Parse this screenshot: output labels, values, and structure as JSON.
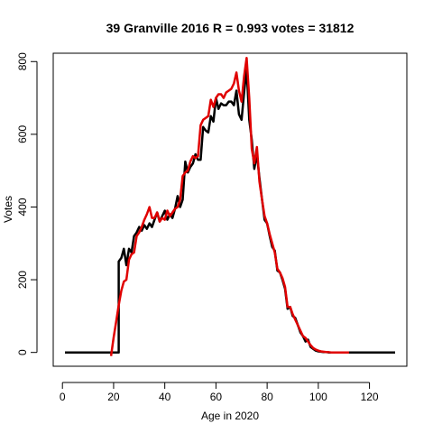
{
  "chart_data": {
    "type": "line",
    "title": "39 Granville 2016 R = 0.993 votes = 31812",
    "xlabel": "Age in 2020",
    "ylabel": "Votes",
    "xlim": [
      -3.6,
      134.6
    ],
    "ylim": [
      -38,
      823
    ],
    "x_ticks": [
      "0",
      "20",
      "40",
      "60",
      "80",
      "100",
      "120"
    ],
    "y_ticks": [
      "0",
      "200",
      "400",
      "600",
      "800"
    ],
    "grid": false,
    "legend": "none",
    "series": [
      {
        "color": "#000000",
        "x": [
          1,
          22,
          22,
          23,
          24,
          25,
          26,
          27,
          28,
          29,
          30,
          31,
          32,
          33,
          34,
          35,
          36,
          37,
          38,
          39,
          40,
          41,
          42,
          43,
          44,
          45,
          46,
          47,
          48,
          49,
          50,
          51,
          52,
          53,
          54,
          55,
          56,
          57,
          58,
          59,
          60,
          61,
          62,
          63,
          64,
          65,
          66,
          67,
          68,
          69,
          70,
          71,
          72,
          73,
          74,
          75,
          76,
          77,
          78,
          79,
          80,
          81,
          82,
          83,
          84,
          85,
          86,
          87,
          88,
          89,
          90,
          91,
          92,
          93,
          94,
          95,
          96,
          97,
          98,
          99,
          100,
          101,
          102,
          103,
          104,
          105,
          110,
          120,
          130
        ],
        "y": [
          0,
          0,
          250,
          260,
          285,
          240,
          285,
          275,
          320,
          330,
          345,
          335,
          350,
          340,
          355,
          345,
          365,
          385,
          360,
          375,
          390,
          365,
          380,
          370,
          395,
          430,
          400,
          420,
          525,
          495,
          510,
          520,
          545,
          530,
          530,
          620,
          610,
          605,
          650,
          635,
          700,
          670,
          685,
          680,
          680,
          690,
          690,
          680,
          720,
          655,
          640,
          715,
          780,
          640,
          585,
          505,
          545,
          480,
          420,
          365,
          355,
          320,
          290,
          280,
          225,
          220,
          200,
          175,
          120,
          125,
          100,
          95,
          75,
          55,
          45,
          30,
          35,
          15,
          10,
          5,
          3,
          2,
          1,
          1,
          0,
          0,
          0,
          0,
          0
        ]
      },
      {
        "color": "#e00000",
        "x": [
          19,
          20,
          21,
          22,
          23,
          24,
          25,
          26,
          27,
          28,
          29,
          30,
          31,
          32,
          33,
          34,
          35,
          36,
          37,
          38,
          39,
          40,
          41,
          42,
          43,
          44,
          45,
          46,
          47,
          48,
          49,
          50,
          51,
          52,
          53,
          54,
          55,
          56,
          57,
          58,
          59,
          60,
          61,
          62,
          63,
          64,
          65,
          66,
          67,
          68,
          69,
          70,
          71,
          72,
          73,
          74,
          75,
          76,
          77,
          78,
          79,
          80,
          81,
          82,
          83,
          84,
          85,
          86,
          87,
          88,
          89,
          90,
          91,
          92,
          93,
          94,
          95,
          96,
          97,
          98,
          99,
          100,
          101,
          102,
          103,
          104,
          105,
          106,
          107,
          108,
          109,
          110,
          111,
          112
        ],
        "y": [
          -10,
          40,
          85,
          130,
          170,
          195,
          200,
          255,
          270,
          275,
          320,
          330,
          345,
          365,
          380,
          400,
          370,
          370,
          385,
          360,
          370,
          365,
          390,
          375,
          385,
          395,
          400,
          420,
          485,
          495,
          500,
          525,
          540,
          535,
          540,
          625,
          640,
          645,
          650,
          695,
          675,
          700,
          710,
          710,
          700,
          715,
          720,
          725,
          740,
          770,
          720,
          690,
          760,
          810,
          700,
          560,
          520,
          565,
          470,
          420,
          375,
          355,
          325,
          300,
          275,
          230,
          220,
          205,
          180,
          125,
          125,
          105,
          90,
          75,
          60,
          45,
          40,
          30,
          20,
          12,
          8,
          5,
          3,
          2,
          1,
          1,
          0,
          0,
          0,
          0,
          0,
          0,
          0,
          0
        ]
      }
    ]
  }
}
